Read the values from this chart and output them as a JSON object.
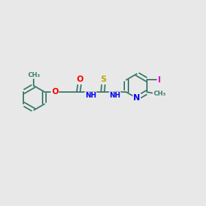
{
  "background_color": "#e8e8e8",
  "bond_color": "#3a7a6a",
  "bond_width": 1.4,
  "atom_colors": {
    "O": "#ff0000",
    "N": "#0000ee",
    "S": "#bbaa00",
    "I": "#dd00dd",
    "C": "#3a7a6a"
  },
  "font_size": 7.0,
  "xlim": [
    0,
    12
  ],
  "ylim": [
    0,
    10
  ]
}
